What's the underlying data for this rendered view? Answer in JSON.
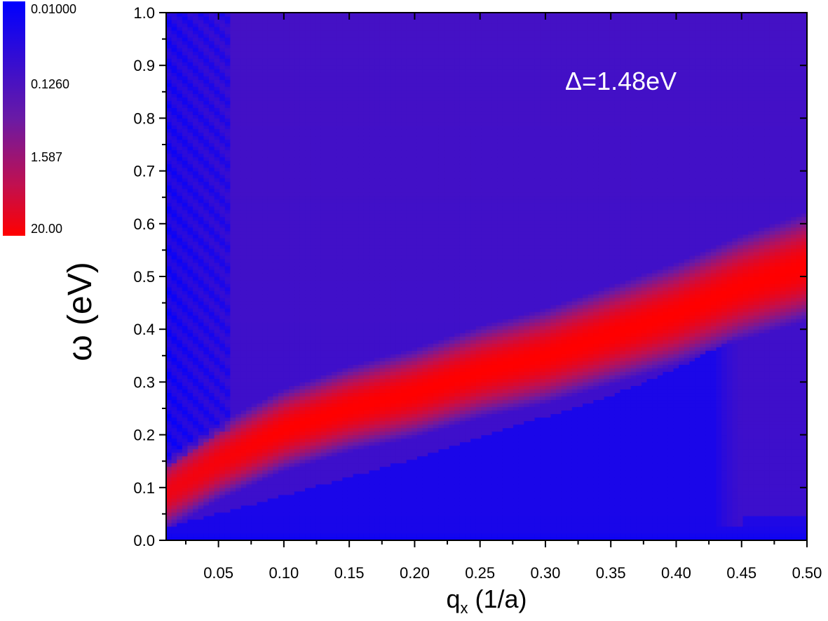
{
  "chart_data": {
    "type": "heatmap",
    "title": "",
    "xlabel": "q",
    "xlabel_subscript": "x",
    "xlabel_units": " (1/a)",
    "ylabel": "ω (eV)",
    "xlim": [
      0.01,
      0.5
    ],
    "ylim": [
      0.0,
      1.0
    ],
    "x_ticks": [
      "0.05",
      "0.10",
      "0.15",
      "0.20",
      "0.25",
      "0.30",
      "0.35",
      "0.40",
      "0.45",
      "0.50"
    ],
    "y_ticks": [
      "0.0",
      "0.1",
      "0.2",
      "0.3",
      "0.4",
      "0.5",
      "0.6",
      "0.7",
      "0.8",
      "0.9",
      "1.0"
    ],
    "annotation": "Δ=1.48eV",
    "colorscale": {
      "scale": "log",
      "min": 0.01,
      "max": 20.0,
      "labels": [
        "0.01000",
        "0.1260",
        "1.587",
        "20.00"
      ],
      "color_low": "#0000ff",
      "color_mid": "#6010a0",
      "color_high": "#ff0000"
    },
    "features": {
      "plasmon_ridge": {
        "description_points_q": [
          0.01,
          0.05,
          0.1,
          0.15,
          0.2,
          0.25,
          0.3,
          0.35,
          0.4,
          0.45,
          0.5
        ],
        "description_points_omega": [
          0.09,
          0.15,
          0.21,
          0.25,
          0.28,
          0.32,
          0.35,
          0.39,
          0.43,
          0.48,
          0.52
        ],
        "peak_value": 20.0
      },
      "low_region_boundary": {
        "q": [
          0.01,
          0.1,
          0.2,
          0.3,
          0.35,
          0.4,
          0.43
        ],
        "omega": [
          0.03,
          0.09,
          0.16,
          0.24,
          0.28,
          0.33,
          0.37
        ]
      },
      "background_level": 0.1
    },
    "grid": false,
    "colorbar_position": "top-left"
  }
}
